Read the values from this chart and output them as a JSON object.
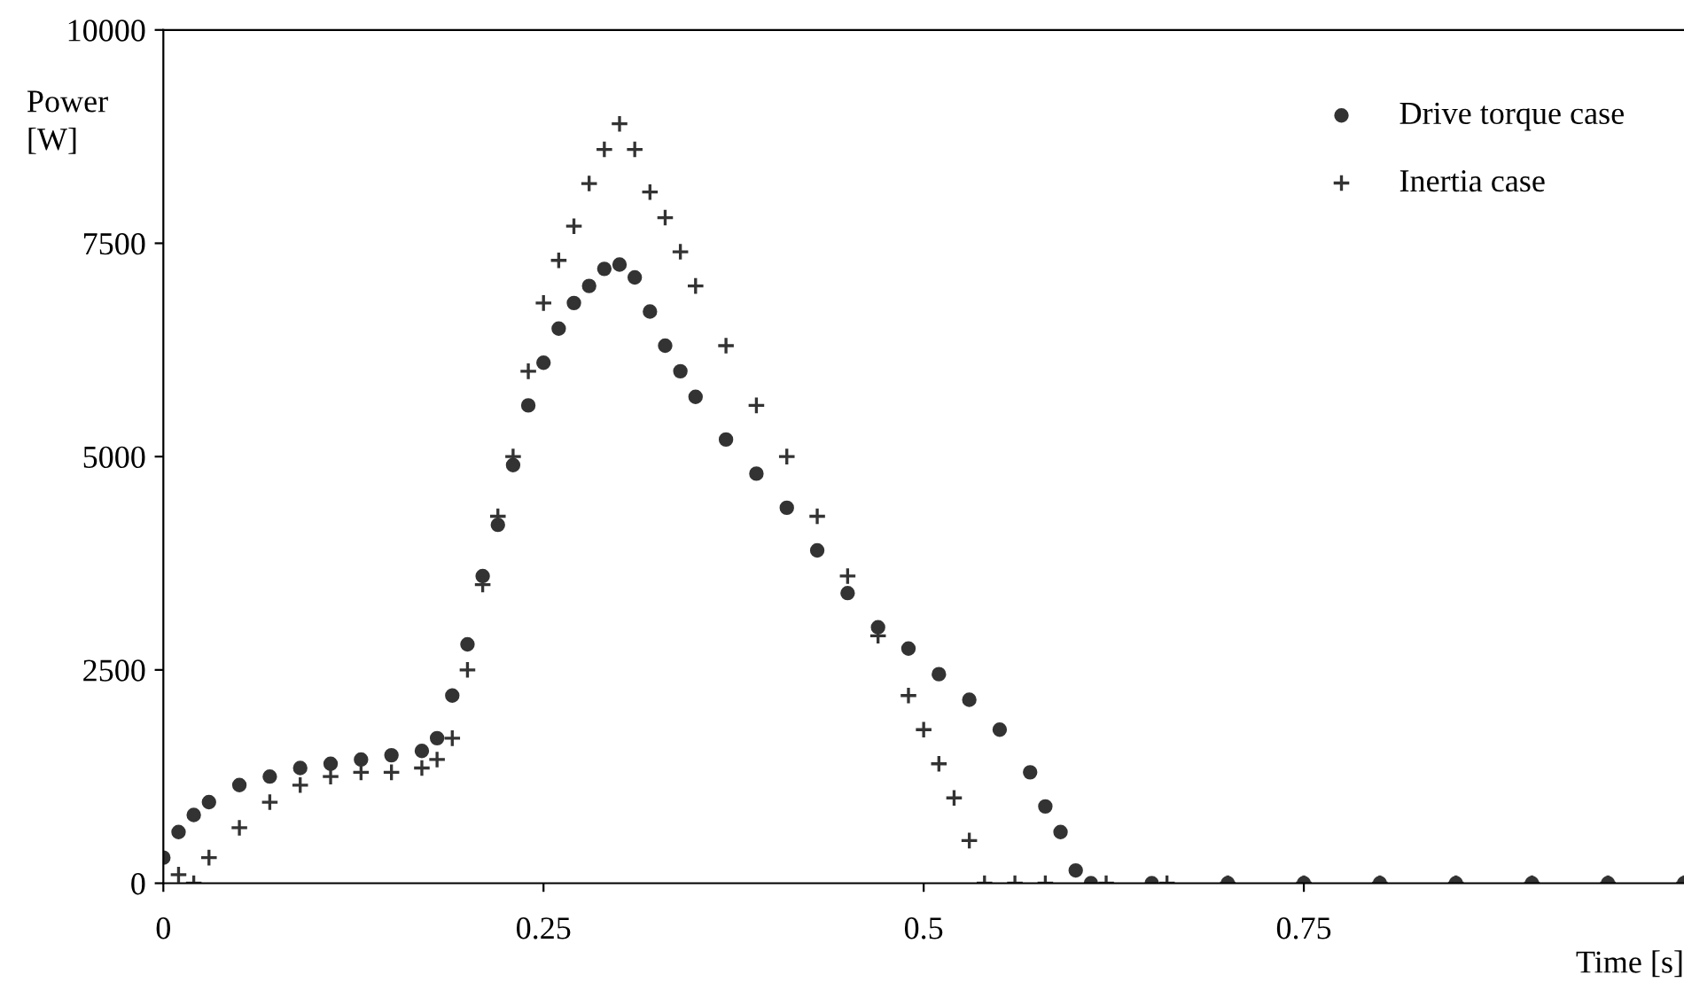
{
  "chart_data": {
    "type": "scatter",
    "xlabel": "Time [s]",
    "ylabel": "Power\n[W]",
    "xlim": [
      0,
      1.0
    ],
    "ylim": [
      0,
      10000
    ],
    "xticks": [
      0,
      0.25,
      0.5,
      0.75
    ],
    "yticks": [
      0,
      2500,
      5000,
      7500,
      10000
    ],
    "grid": false,
    "legend": "top right",
    "series": [
      {
        "name": "Drive torque case",
        "color": "#333333",
        "marker": "circle",
        "x": [
          0,
          0.01,
          0.02,
          0.03,
          0.05,
          0.07,
          0.09,
          0.11,
          0.13,
          0.15,
          0.17,
          0.18,
          0.19,
          0.2,
          0.21,
          0.22,
          0.23,
          0.24,
          0.25,
          0.26,
          0.27,
          0.28,
          0.29,
          0.3,
          0.31,
          0.32,
          0.33,
          0.34,
          0.35,
          0.37,
          0.39,
          0.41,
          0.43,
          0.45,
          0.47,
          0.49,
          0.51,
          0.53,
          0.55,
          0.57,
          0.58,
          0.59,
          0.6,
          0.61,
          0.65,
          0.7,
          0.75,
          0.8,
          0.85,
          0.9,
          0.95,
          1.0
        ],
        "values": [
          300,
          600,
          800,
          950,
          1150,
          1250,
          1350,
          1400,
          1450,
          1500,
          1550,
          1700,
          2200,
          2800,
          3600,
          4200,
          4900,
          5600,
          6100,
          6500,
          6800,
          7000,
          7200,
          7250,
          7100,
          6700,
          6300,
          6000,
          5700,
          5200,
          4800,
          4400,
          3900,
          3400,
          3000,
          2750,
          2450,
          2150,
          1800,
          1300,
          900,
          600,
          150,
          0,
          0,
          0,
          0,
          0,
          0,
          0,
          0,
          0
        ]
      },
      {
        "name": "Inertia case",
        "color": "#333333",
        "marker": "cross",
        "x": [
          0.01,
          0.02,
          0.03,
          0.05,
          0.07,
          0.09,
          0.11,
          0.13,
          0.15,
          0.17,
          0.18,
          0.19,
          0.2,
          0.21,
          0.22,
          0.23,
          0.24,
          0.25,
          0.26,
          0.27,
          0.28,
          0.29,
          0.3,
          0.31,
          0.32,
          0.33,
          0.34,
          0.35,
          0.37,
          0.39,
          0.41,
          0.43,
          0.45,
          0.47,
          0.49,
          0.5,
          0.51,
          0.52,
          0.53,
          0.54,
          0.56,
          0.58,
          0.62,
          0.66,
          0.7,
          0.75,
          0.8,
          0.85,
          0.9,
          0.95,
          1.0
        ],
        "values": [
          100,
          0,
          300,
          650,
          950,
          1150,
          1250,
          1300,
          1300,
          1350,
          1450,
          1700,
          2500,
          3500,
          4300,
          5000,
          6000,
          6800,
          7300,
          7700,
          8200,
          8600,
          8900,
          8600,
          8100,
          7800,
          7400,
          7000,
          6300,
          5600,
          5000,
          4300,
          3600,
          2900,
          2200,
          1800,
          1400,
          1000,
          500,
          0,
          0,
          0,
          0,
          0,
          0,
          0,
          0,
          0,
          0,
          0,
          0
        ]
      }
    ]
  }
}
